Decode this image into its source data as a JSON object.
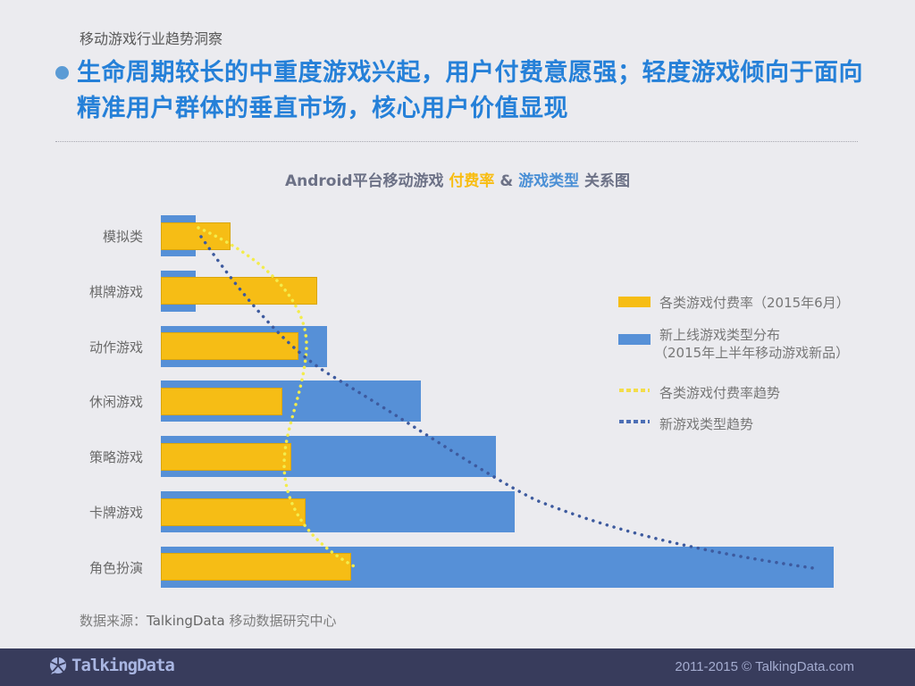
{
  "header": {
    "subtitle": "移动游戏行业趋势洞察",
    "headline": "生命周期较长的中重度游戏兴起，用户付费意愿强；轻度游戏倾向于面向精准用户群体的垂直市场，核心用户价值显现"
  },
  "chart_title": {
    "part1": "Android平台移动游戏 ",
    "part2": "付费率",
    "part3": " & ",
    "part4": "游戏类型",
    "part5": " 关系图"
  },
  "legend": {
    "items": [
      {
        "label": "各类游戏付费率（2015年6月）",
        "color": "#f6bd15",
        "type": "bar"
      },
      {
        "label": "新上线游戏类型分布",
        "label2": "（2015年上半年移动游戏新品）",
        "color": "#5690d7",
        "type": "bar"
      },
      {
        "label": "各类游戏付费率趋势",
        "color": "#f5e84a",
        "type": "dotted-line"
      },
      {
        "label": "新游戏类型趋势",
        "color": "#3d5a9e",
        "type": "dotted-line"
      }
    ]
  },
  "chart_data": {
    "type": "bar",
    "orientation": "horizontal",
    "title": "Android平台移动游戏 付费率 & 游戏类型 关系图",
    "categories": [
      "模拟类",
      "棋牌游戏",
      "动作游戏",
      "休闲游戏",
      "策略游戏",
      "卡牌游戏",
      "角色扮演"
    ],
    "series": [
      {
        "name": "新上线游戏类型分布（2015年上半年移动游戏新品）",
        "color": "#5690d7",
        "values": [
          39,
          39,
          186,
          291,
          375,
          396,
          753
        ],
        "unit": "relative px length (no axis shown)"
      },
      {
        "name": "各类游戏付费率（2015年6月）",
        "color": "#f6bd15",
        "values": [
          78,
          175,
          154,
          136,
          146,
          162,
          213
        ],
        "unit": "relative px length (no axis shown)"
      }
    ],
    "trend_lines": [
      {
        "name": "各类游戏付费率趋势",
        "style": "dotted",
        "color": "#f5e84a"
      },
      {
        "name": "新游戏类型趋势",
        "style": "dotted",
        "color": "#3d5a9e"
      }
    ],
    "xlabel": "",
    "ylabel": "",
    "axes_visible": false,
    "grid": false,
    "legend_position": "right"
  },
  "source": {
    "prefix": "数据来源：",
    "brand": "TalkingData",
    "suffix": " 移动数据研究中心"
  },
  "footer": {
    "logo_text": "TalkingData",
    "copyright": "2011-2015 © TalkingData.com"
  }
}
